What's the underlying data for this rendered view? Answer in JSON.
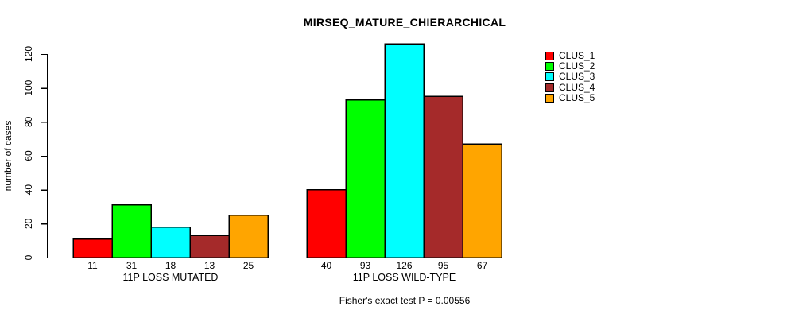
{
  "title": "MIRSEQ_MATURE_CHIERARCHICAL",
  "footnote": "Fisher's exact test P = 0.00556",
  "colors": {
    "background": "#FFFFFF",
    "axis": "#000000",
    "text": "#000000"
  },
  "legend": {
    "position": "right",
    "items": [
      {
        "label": "CLUS_1",
        "color": "#FF0000"
      },
      {
        "label": "CLUS_2",
        "color": "#00FF00"
      },
      {
        "label": "CLUS_3",
        "color": "#00FFFF"
      },
      {
        "label": "CLUS_4",
        "color": "#A52A2A"
      },
      {
        "label": "CLUS_5",
        "color": "#FFA500"
      }
    ]
  },
  "chart_data": {
    "type": "bar",
    "title": "MIRSEQ_MATURE_CHIERARCHICAL",
    "xlabel": "",
    "ylabel": "number of cases",
    "ylim": [
      0,
      126
    ],
    "yticks": [
      0,
      20,
      40,
      60,
      80,
      100,
      120
    ],
    "grid": false,
    "legend_position": "right",
    "categories": [
      "11P LOSS MUTATED",
      "11P LOSS WILD-TYPE"
    ],
    "series": [
      {
        "name": "CLUS_1",
        "color": "#FF0000",
        "values": [
          11,
          40
        ]
      },
      {
        "name": "CLUS_2",
        "color": "#00FF00",
        "values": [
          31,
          93
        ]
      },
      {
        "name": "CLUS_3",
        "color": "#00FFFF",
        "values": [
          18,
          126
        ]
      },
      {
        "name": "CLUS_4",
        "color": "#A52A2A",
        "values": [
          13,
          95
        ]
      },
      {
        "name": "CLUS_5",
        "color": "#FFA500",
        "values": [
          25,
          67
        ]
      }
    ],
    "bar_value_labels": [
      [
        "11",
        "31",
        "18",
        "13",
        "25"
      ],
      [
        "40",
        "93",
        "126",
        "95",
        "67"
      ]
    ],
    "annotation": "Fisher's exact test P = 0.00556"
  }
}
